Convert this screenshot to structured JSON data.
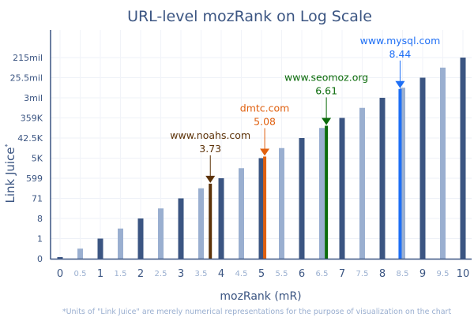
{
  "chart_data": {
    "type": "bar",
    "title": "URL-level mozRank on Log Scale",
    "xlabel": "mozRank (mR)",
    "ylabel": "Link Juice",
    "ylabel_mark": "*",
    "footnote": "*Units of \"Link Juice\" are merely numerical representations for the purpose of visualization on the chart",
    "xlim": [
      0,
      10
    ],
    "ylim": [
      0,
      10
    ],
    "x_ticks": [
      "0",
      "0.5",
      "1",
      "1.5",
      "2",
      "2.5",
      "3",
      "3.5",
      "4",
      "4.5",
      "5",
      "5.5",
      "6",
      "6.5",
      "7",
      "7.5",
      "8",
      "8.5",
      "9",
      "9.5",
      "10"
    ],
    "y_ticks": [
      "0",
      "1",
      "8",
      "71",
      "599",
      "5K",
      "42.5K",
      "359K",
      "3mil",
      "25.5mil",
      "215mil"
    ],
    "bars": [
      0,
      0.5,
      1,
      1.5,
      2,
      2.5,
      3,
      3.5,
      4,
      4.5,
      5,
      5.5,
      6,
      6.5,
      7,
      7.5,
      8,
      8.5,
      9,
      9.5,
      10
    ],
    "highlights": [
      {
        "site": "www.noahs.com",
        "value": "3.73",
        "color": "#5c3208"
      },
      {
        "site": "dmtc.com",
        "value": "5.08",
        "color": "#e0600f"
      },
      {
        "site": "www.seomoz.org",
        "value": "6.61",
        "color": "#0b6b0b"
      },
      {
        "site": "www.mysql.com",
        "value": "8.44",
        "color": "#1e6ff5"
      }
    ],
    "colors": {
      "whole": "#3b5582",
      "half": "#9aafd0",
      "text": "#3b5582"
    }
  }
}
